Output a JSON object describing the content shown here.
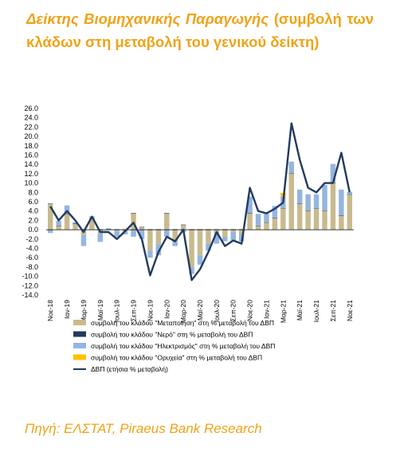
{
  "heading": {
    "bold": "Δείκτης Βιομηχανικής Παραγωγής",
    "rest": " (συμβολή των κλάδων στη μεταβολή του γενικού δείκτη)"
  },
  "source": "Πηγή: ΕΛΣΤΑΤ, Piraeus Bank Research",
  "colors": {
    "accent": "#F0A317",
    "manufacturing": "#C9BA8E",
    "water": "#223A5E",
    "electricity": "#95B5E0",
    "mining": "#FFC000",
    "total": "#223A5E"
  },
  "chart_data": {
    "type": "bar",
    "stacked": true,
    "ylim": [
      -14,
      26
    ],
    "yticks": [
      "26.0",
      "24.0",
      "22.0",
      "20.0",
      "18.0",
      "16.0",
      "14.0",
      "12.0",
      "10.0",
      "8.0",
      "6.0",
      "4.0",
      "2.0",
      "0.0",
      "-2.0",
      "-4.0",
      "-6.0",
      "-8.0",
      "-10.0",
      "-12.0",
      "-14.0"
    ],
    "xtick_labels": [
      "Νοε-18",
      "Ιαν-19",
      "Μαρ-19",
      "Μαϊ-19",
      "Ιουλ-19",
      "Σεπ-19",
      "Νοε-19",
      "Ιαν-20",
      "Μαρ-20",
      "Μαϊ-20",
      "Ιουλ-20",
      "Σεπ-20",
      "Νοε-20",
      "Ιαν-21",
      "Μαρ-21",
      "Μαϊ-21",
      "Ιουλ-21",
      "Σεπ-21",
      "Νοε-21"
    ],
    "categories": [
      "Νοε-18",
      "Δεκ-18",
      "Ιαν-19",
      "Φεβ-19",
      "Μαρ-19",
      "Απρ-19",
      "Μαϊ-19",
      "Ιουν-19",
      "Ιουλ-19",
      "Αυγ-19",
      "Σεπ-19",
      "Οκτ-19",
      "Νοε-19",
      "Δεκ-19",
      "Ιαν-20",
      "Φεβ-20",
      "Μαρ-20",
      "Απρ-20",
      "Μαϊ-20",
      "Ιουν-20",
      "Ιουλ-20",
      "Αυγ-20",
      "Σεπ-20",
      "Οκτ-20",
      "Νοε-20",
      "Δεκ-20",
      "Ιαν-21",
      "Φεβ-21",
      "Μαρ-21",
      "Απρ-21",
      "Μαϊ-21",
      "Ιουν-21",
      "Ιουλ-21",
      "Αυγ-21",
      "Σεπ-21",
      "Οκτ-21",
      "Νοε-21"
    ],
    "legend_position": "bottom",
    "series": [
      {
        "name": "συμβολή του κλάδου \"Μεταποίηση\" στη % μεταβολή του ΔΒΠ",
        "kind": "bar",
        "color": "#C9BA8E",
        "values": [
          5.5,
          0.8,
          3.3,
          1.2,
          -1.2,
          2.3,
          -0.8,
          0.0,
          -0.3,
          -0.5,
          3.5,
          0.5,
          -4.5,
          -3.0,
          3.5,
          -2.0,
          1.0,
          -8.0,
          -5.5,
          -3.0,
          -0.5,
          -1.5,
          -0.5,
          -1.0,
          3.5,
          0.8,
          1.5,
          2.5,
          4.5,
          12.0,
          5.5,
          4.0,
          4.5,
          4.0,
          10.0,
          3.0,
          7.5
        ]
      },
      {
        "name": "συμβολή του κλάδου \"Νερό\" στη % μεταβολή του ΔΒΠ",
        "kind": "bar",
        "color": "#223A5E",
        "values": [
          0.1,
          0.1,
          0.1,
          0.1,
          0.1,
          0.1,
          0.1,
          0.1,
          0.1,
          0.1,
          0.1,
          0.1,
          0.1,
          0.1,
          0.1,
          0.1,
          0.1,
          0.1,
          0.1,
          0.1,
          0.1,
          0.1,
          0.1,
          0.1,
          0.1,
          0.1,
          0.1,
          0.1,
          0.1,
          0.1,
          0.1,
          0.1,
          0.1,
          0.1,
          0.1,
          0.1,
          0.1
        ]
      },
      {
        "name": "συμβολή του κλάδου \"Ηλεκτρισμός\" στη % μεταβολή του ΔΒΠ",
        "kind": "bar",
        "color": "#95B5E0",
        "values": [
          -0.7,
          1.0,
          1.8,
          0.3,
          -2.3,
          0.5,
          -1.8,
          0.2,
          -1.2,
          -0.5,
          -1.5,
          -2.0,
          -1.5,
          -2.5,
          -1.5,
          -1.5,
          -0.5,
          -1.5,
          -2.0,
          -1.5,
          -2.5,
          -1.0,
          -1.8,
          -1.5,
          3.5,
          2.5,
          1.8,
          2.5,
          2.5,
          2.5,
          3.0,
          3.5,
          3.0,
          5.5,
          4.0,
          5.5,
          0.5
        ]
      },
      {
        "name": "συμβολή του κλάδου \"Ορυχεία\" στη % μεταβολή του ΔΒΠ",
        "kind": "bar",
        "color": "#FFC000",
        "values": [
          0.0,
          0.0,
          0.0,
          0.0,
          0.0,
          0.0,
          0.0,
          0.0,
          0.0,
          0.0,
          0.0,
          0.0,
          0.0,
          0.0,
          0.0,
          0.0,
          0.0,
          0.0,
          0.0,
          0.0,
          0.0,
          0.0,
          0.0,
          0.0,
          0.0,
          0.0,
          0.0,
          0.0,
          0.8,
          0.0,
          0.0,
          0.0,
          0.0,
          0.0,
          0.0,
          0.0,
          0.0
        ]
      },
      {
        "name": "ΔΒΠ (ετήσια % μεταβολή)",
        "kind": "line",
        "color": "#223A5E",
        "values": [
          5.0,
          2.0,
          4.0,
          2.0,
          -0.5,
          2.8,
          -0.5,
          -0.5,
          -2.0,
          -0.3,
          1.5,
          -2.0,
          -9.8,
          -4.8,
          -1.5,
          -2.5,
          0.0,
          -10.8,
          -8.5,
          -4.8,
          -0.5,
          -3.5,
          -2.3,
          -3.0,
          9.0,
          4.0,
          3.5,
          4.5,
          5.8,
          22.8,
          15.0,
          9.0,
          8.0,
          10.0,
          10.0,
          16.5,
          8.0
        ]
      }
    ]
  }
}
